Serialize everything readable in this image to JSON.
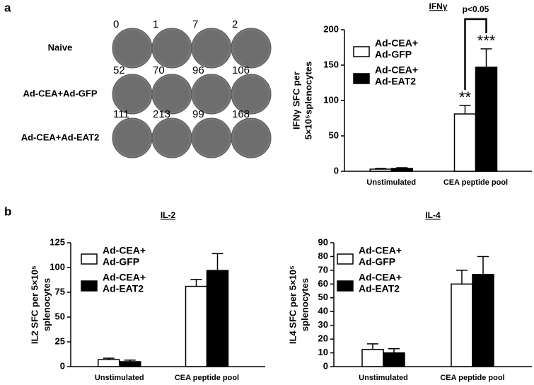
{
  "panel_labels": [
    "a",
    "b"
  ],
  "wells": {
    "rows": [
      {
        "label": "Naive",
        "counts": [
          "0",
          "1",
          "7",
          "2"
        ]
      },
      {
        "label": "Ad-CEA+Ad-GFP",
        "counts": [
          "52",
          "70",
          "96",
          "106"
        ]
      },
      {
        "label": "Ad-CEA+Ad-EAT2",
        "counts": [
          "111",
          "213",
          "99",
          "168"
        ]
      }
    ]
  },
  "chart_data": [
    {
      "type": "bar",
      "title": "IFNγ",
      "ylabel": [
        "IFNγ SFC per",
        "5×10⁵splenocytes"
      ],
      "categories": [
        "Unstimulated",
        "CEA peptide pool"
      ],
      "series": [
        {
          "name": [
            "Ad-CEA+",
            "Ad-GFP"
          ],
          "color": "#ffffff",
          "values": [
            3,
            81
          ],
          "errors": [
            1,
            12
          ]
        },
        {
          "name": [
            "Ad-CEA+",
            "Ad-EAT2"
          ],
          "color": "#000000",
          "values": [
            4,
            147
          ],
          "errors": [
            1,
            26
          ]
        }
      ],
      "ylim": [
        0,
        200
      ],
      "yticks": [
        0,
        50,
        100,
        150,
        200
      ],
      "annotations": [
        "**",
        "***",
        "p<0.05"
      ]
    },
    {
      "type": "bar",
      "title": "IL-2",
      "ylabel": [
        "IL2  SFC per 5×10⁵",
        "splenocytes"
      ],
      "categories": [
        "Unstimulated",
        "CEA peptide pool"
      ],
      "series": [
        {
          "name": [
            "Ad-CEA+",
            "Ad-GFP"
          ],
          "color": "#ffffff",
          "values": [
            7,
            81
          ],
          "errors": [
            1.5,
            7
          ]
        },
        {
          "name": [
            "Ad-CEA+",
            "Ad-EAT2"
          ],
          "color": "#000000",
          "values": [
            5,
            97
          ],
          "errors": [
            1.5,
            17
          ]
        }
      ],
      "ylim": [
        0,
        125
      ],
      "yticks": [
        0,
        25,
        50,
        75,
        100,
        125
      ]
    },
    {
      "type": "bar",
      "title": "IL-4",
      "ylabel": [
        "IL4  SFC per 5×10⁵",
        "splenocytes"
      ],
      "categories": [
        "Unstimulated",
        "CEA peptide pool"
      ],
      "series": [
        {
          "name": [
            "Ad-CEA+",
            "Ad-GFP"
          ],
          "color": "#ffffff",
          "values": [
            12.5,
            60
          ],
          "errors": [
            4,
            10
          ]
        },
        {
          "name": [
            "Ad-CEA+",
            "Ad-EAT2"
          ],
          "color": "#000000",
          "values": [
            10,
            67
          ],
          "errors": [
            3,
            13
          ]
        }
      ],
      "ylim": [
        0,
        90
      ],
      "yticks": [
        0,
        10,
        20,
        30,
        40,
        50,
        60,
        70,
        80,
        90
      ]
    }
  ]
}
